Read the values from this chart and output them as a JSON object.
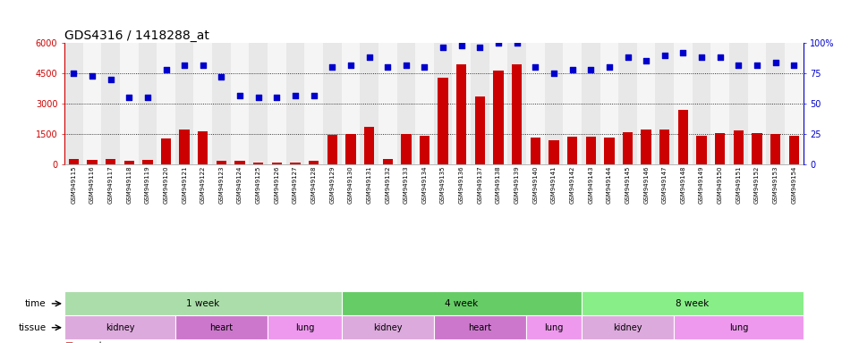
{
  "title": "GDS4316 / 1418288_at",
  "samples": [
    "GSM949115",
    "GSM949116",
    "GSM949117",
    "GSM949118",
    "GSM949119",
    "GSM949120",
    "GSM949121",
    "GSM949122",
    "GSM949123",
    "GSM949124",
    "GSM949125",
    "GSM949126",
    "GSM949127",
    "GSM949128",
    "GSM949129",
    "GSM949130",
    "GSM949131",
    "GSM949132",
    "GSM949133",
    "GSM949134",
    "GSM949135",
    "GSM949136",
    "GSM949137",
    "GSM949138",
    "GSM949139",
    "GSM949140",
    "GSM949141",
    "GSM949142",
    "GSM949143",
    "GSM949144",
    "GSM949145",
    "GSM949146",
    "GSM949147",
    "GSM949148",
    "GSM949149",
    "GSM949150",
    "GSM949151",
    "GSM949152",
    "GSM949153",
    "GSM949154"
  ],
  "counts": [
    280,
    220,
    280,
    200,
    230,
    1300,
    1750,
    1650,
    180,
    200,
    120,
    120,
    120,
    200,
    1480,
    1520,
    1870,
    270,
    1490,
    1430,
    4300,
    4950,
    3350,
    4650,
    4950,
    1330,
    1200,
    1360,
    1360,
    1330,
    1600,
    1730,
    1720,
    2700,
    1430,
    1570,
    1680,
    1570,
    1530,
    1420
  ],
  "percentiles": [
    75,
    73,
    70,
    55,
    55,
    78,
    82,
    82,
    72,
    57,
    55,
    55,
    57,
    57,
    80,
    82,
    88,
    80,
    82,
    80,
    96,
    98,
    96,
    100,
    100,
    80,
    75,
    78,
    78,
    80,
    88,
    85,
    90,
    92,
    88,
    88,
    82,
    82,
    84,
    82
  ],
  "bar_color": "#cc0000",
  "dot_color": "#0000cc",
  "ylim_left": [
    0,
    6000
  ],
  "ylim_right": [
    0,
    100
  ],
  "yticks_left": [
    0,
    1500,
    3000,
    4500,
    6000
  ],
  "yticks_right": [
    0,
    25,
    50,
    75,
    100
  ],
  "grid_values": [
    1500,
    3000,
    4500
  ],
  "time_groups": [
    {
      "label": "1 week",
      "start": 0,
      "end": 15,
      "color": "#aaddaa"
    },
    {
      "label": "4 week",
      "start": 15,
      "end": 28,
      "color": "#66cc66"
    },
    {
      "label": "8 week",
      "start": 28,
      "end": 40,
      "color": "#88ee88"
    }
  ],
  "tissue_groups": [
    {
      "label": "kidney",
      "start": 0,
      "end": 6,
      "color": "#ddaadd"
    },
    {
      "label": "heart",
      "start": 6,
      "end": 11,
      "color": "#cc77cc"
    },
    {
      "label": "lung",
      "start": 11,
      "end": 15,
      "color": "#ee99ee"
    },
    {
      "label": "kidney",
      "start": 15,
      "end": 20,
      "color": "#ddaadd"
    },
    {
      "label": "heart",
      "start": 20,
      "end": 25,
      "color": "#cc77cc"
    },
    {
      "label": "lung",
      "start": 25,
      "end": 28,
      "color": "#ee99ee"
    },
    {
      "label": "kidney",
      "start": 28,
      "end": 33,
      "color": "#ddaadd"
    },
    {
      "label": "lung",
      "start": 33,
      "end": 40,
      "color": "#ee99ee"
    }
  ],
  "col_bg_even": "#e8e8e8",
  "col_bg_odd": "#f5f5f5",
  "background_color": "#ffffff",
  "title_fontsize": 10,
  "tick_fontsize": 7,
  "sample_fontsize": 5.0
}
